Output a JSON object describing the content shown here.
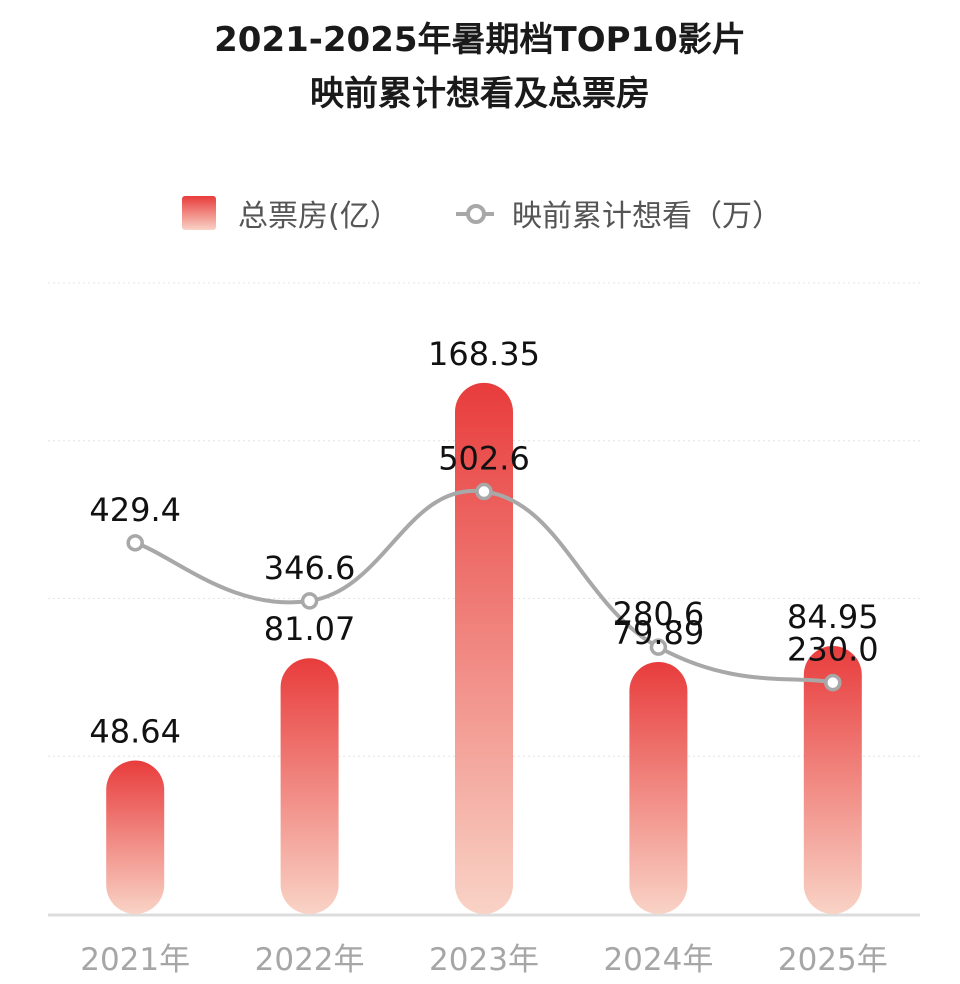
{
  "chart_data": {
    "type": "bar",
    "title_line1": "2021-2025年暑期档TOP10影片",
    "title_line2": "映前累计想看及总票房",
    "categories": [
      "2021年",
      "2022年",
      "2023年",
      "2024年",
      "2025年"
    ],
    "series": [
      {
        "name": "总票房(亿）",
        "type": "bar",
        "values": [
          48.64,
          81.07,
          168.35,
          79.89,
          84.95
        ],
        "labels": [
          "48.64",
          "81.07",
          "168.35",
          "79.89",
          "84.95"
        ]
      },
      {
        "name": "映前累计想看（万）",
        "type": "line",
        "values": [
          429.4,
          346.6,
          502.6,
          280.6,
          230.0
        ],
        "labels": [
          "429.4",
          "346.6",
          "502.6",
          "280.6",
          "230.0"
        ]
      }
    ],
    "bar_ylim": [
      0,
      200
    ],
    "line_ylim": [
      -100,
      800
    ],
    "grid": true,
    "legend_position": "top-center",
    "colors": {
      "bar_top": "#e83c3c",
      "bar_bottom": "#f9d3c6",
      "line": "#a8a8a8",
      "axis": "#dddddd",
      "grid": "#e4e4e4"
    }
  }
}
